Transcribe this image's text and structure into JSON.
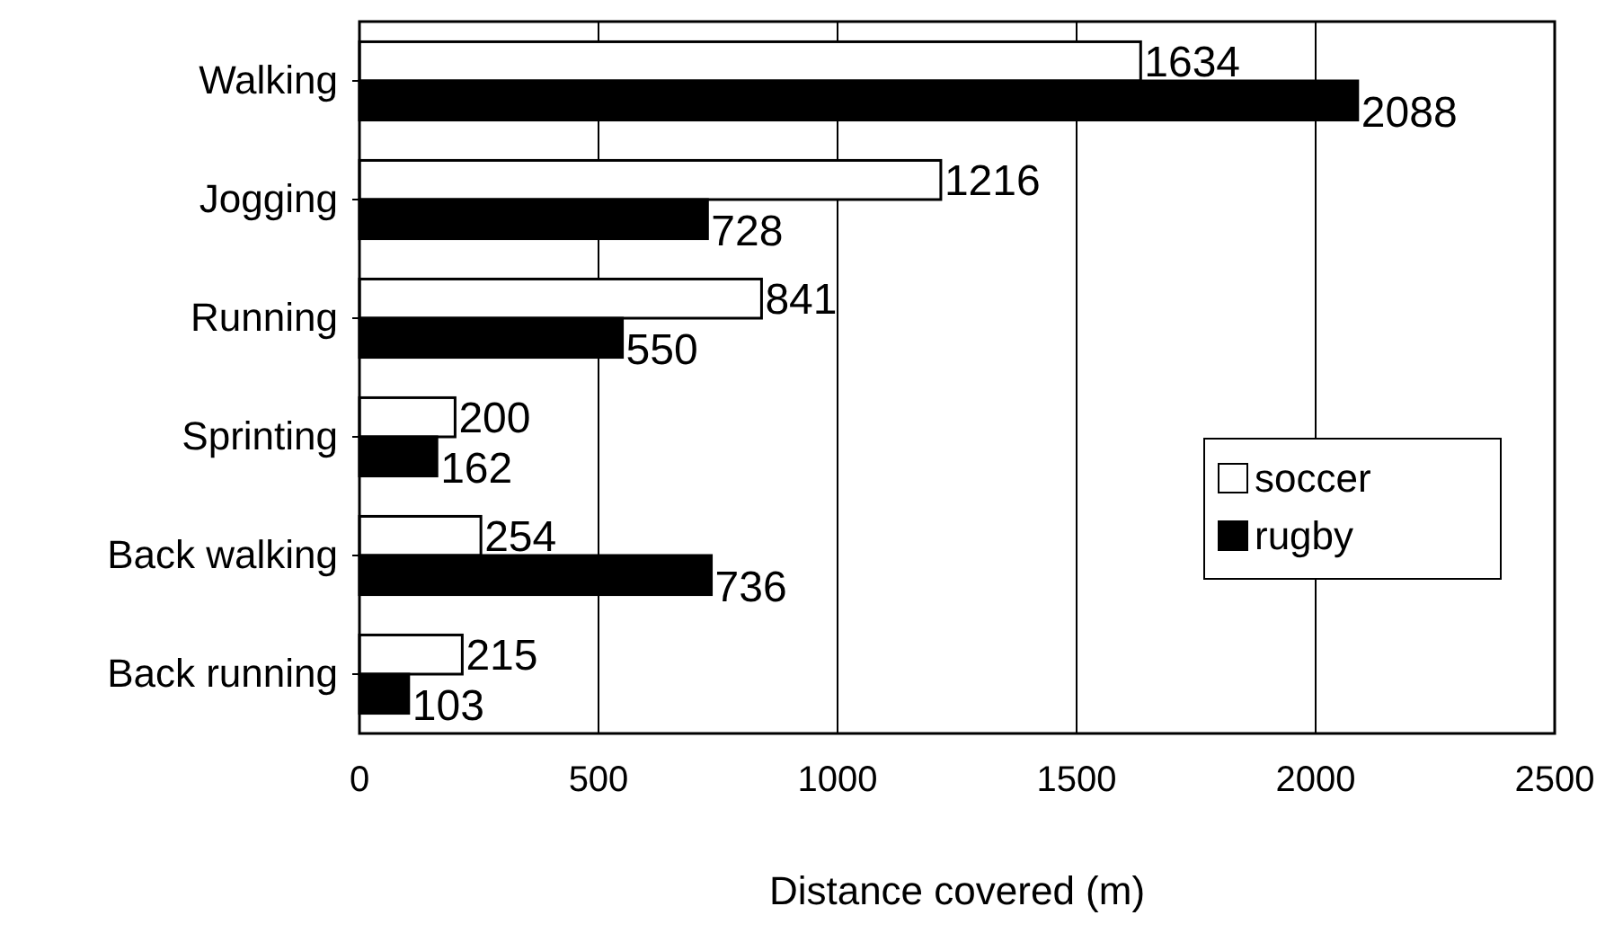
{
  "chart_data": {
    "type": "bar",
    "orientation": "horizontal",
    "xlabel": "Distance covered (m)",
    "categories": [
      "Walking",
      "Jogging",
      "Running",
      "Sprinting",
      "Back walking",
      "Back running"
    ],
    "series": [
      {
        "name": "soccer",
        "color": "#ffffff",
        "values": [
          1634,
          1216,
          841,
          200,
          254,
          215
        ]
      },
      {
        "name": "rugby",
        "color": "#000000",
        "values": [
          2088,
          728,
          550,
          162,
          736,
          103
        ]
      }
    ],
    "xlim": [
      0,
      2500
    ],
    "xticks": [
      0,
      500,
      1000,
      1500,
      2000,
      2500
    ],
    "grid": "x",
    "legend": "right",
    "data_labels": true
  }
}
